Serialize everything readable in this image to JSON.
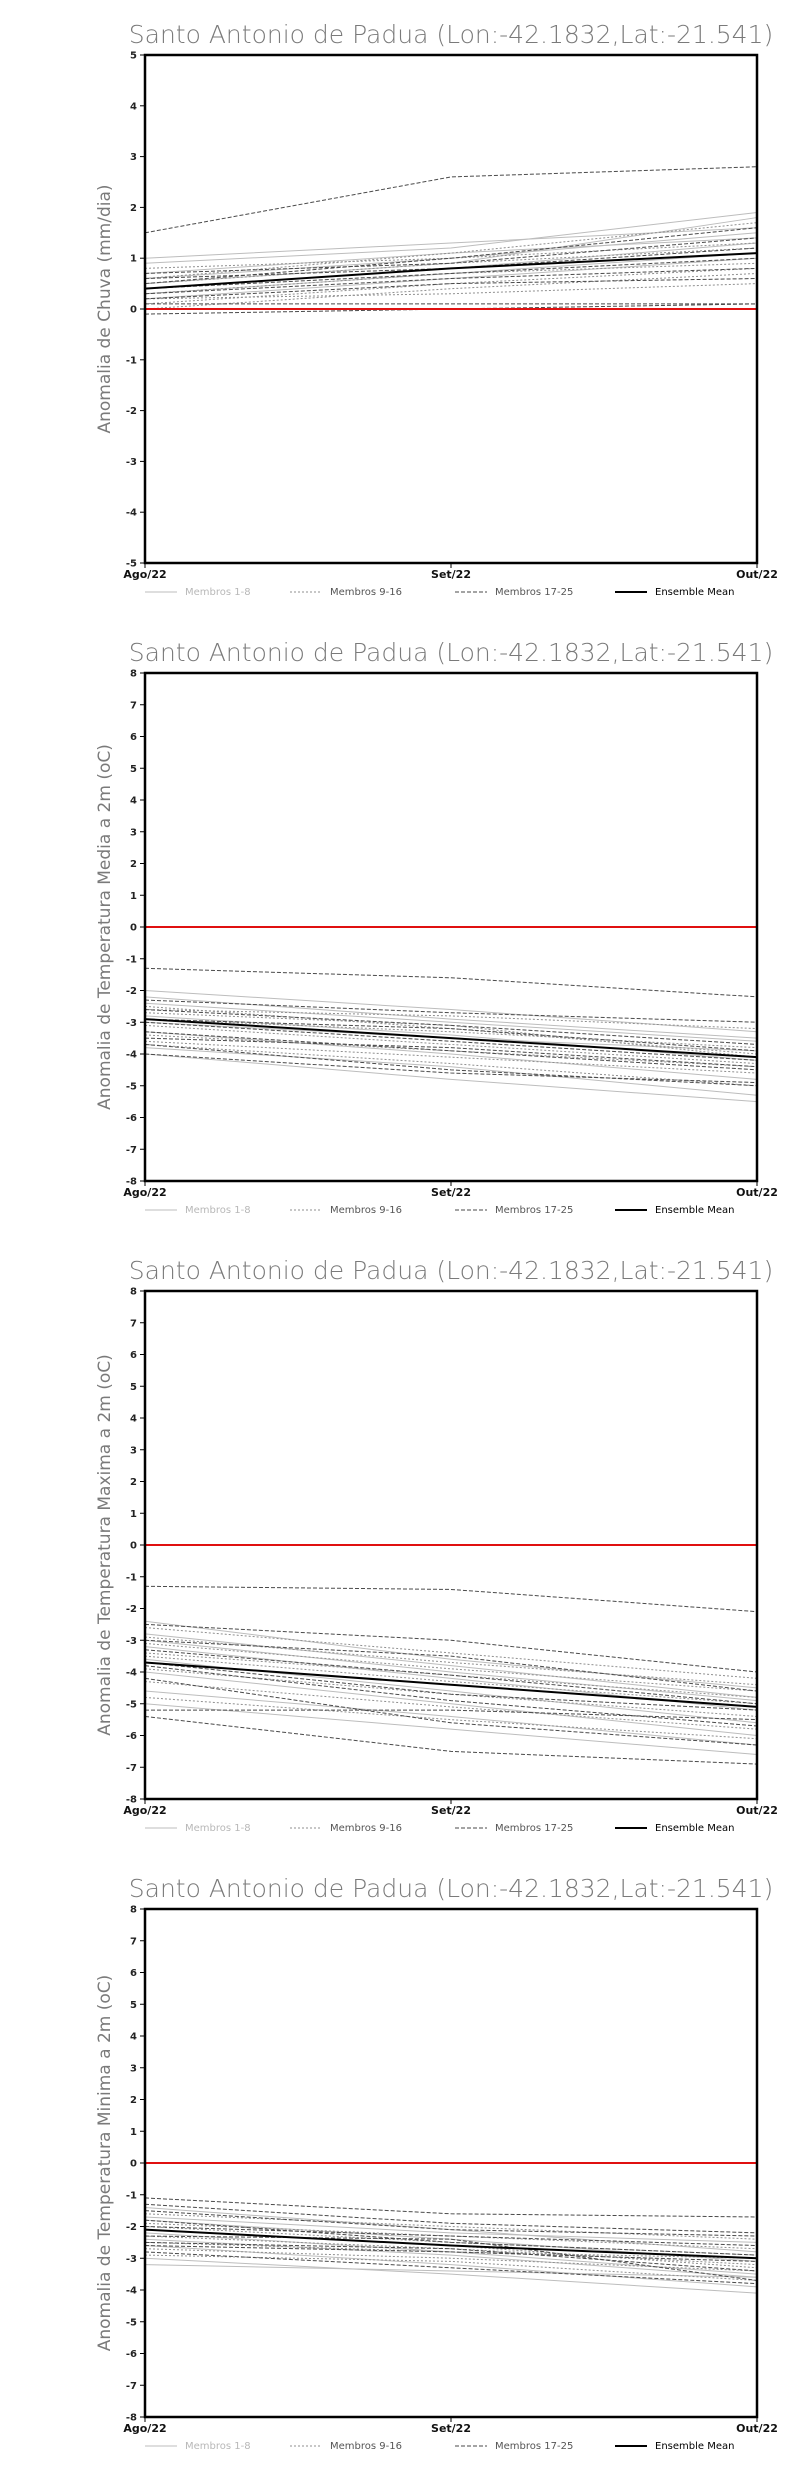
{
  "chart_data": [
    {
      "type": "line",
      "title": "Santo Antonio de Padua (Lon:-42.1832,Lat:-21.541)",
      "ylabel": "Anomalia de Chuva (mm/dia)",
      "xlabel": "",
      "categories": [
        "Ago/22",
        "Set/22",
        "Out/22"
      ],
      "ylim": [
        -5,
        5
      ],
      "yticks": [
        -5,
        -4,
        -3,
        -2,
        -1,
        0,
        1,
        2,
        3,
        4,
        5
      ],
      "zero_line_color": "#e01010",
      "grid": false,
      "legend_position": "bottom",
      "legend": [
        "Membros 1-8",
        "Membros 9-16",
        "Membros 17-25",
        "Ensemble Mean"
      ],
      "series": [
        {
          "group": 1,
          "values": [
            0.9,
            1.2,
            1.9
          ]
        },
        {
          "group": 1,
          "values": [
            0.6,
            1.0,
            1.5
          ]
        },
        {
          "group": 1,
          "values": [
            0.4,
            0.8,
            1.3
          ]
        },
        {
          "group": 1,
          "values": [
            0.2,
            0.6,
            1.0
          ]
        },
        {
          "group": 1,
          "values": [
            1.0,
            1.3,
            1.6
          ]
        },
        {
          "group": 1,
          "values": [
            0.3,
            0.7,
            1.1
          ]
        },
        {
          "group": 1,
          "values": [
            0.7,
            1.1,
            1.4
          ]
        },
        {
          "group": 1,
          "values": [
            0.5,
            0.9,
            1.8
          ]
        },
        {
          "group": 2,
          "values": [
            0.5,
            0.9,
            1.2
          ]
        },
        {
          "group": 2,
          "values": [
            0.3,
            0.7,
            0.9
          ]
        },
        {
          "group": 2,
          "values": [
            0.8,
            1.0,
            1.3
          ]
        },
        {
          "group": 2,
          "values": [
            0.1,
            0.5,
            0.8
          ]
        },
        {
          "group": 2,
          "values": [
            0.6,
            1.1,
            1.7
          ]
        },
        {
          "group": 2,
          "values": [
            0.2,
            0.3,
            0.5
          ]
        },
        {
          "group": 2,
          "values": [
            0.4,
            0.8,
            1.1
          ]
        },
        {
          "group": 2,
          "values": [
            0.0,
            0.4,
            0.7
          ]
        },
        {
          "group": 3,
          "values": [
            1.5,
            2.6,
            2.8
          ]
        },
        {
          "group": 3,
          "values": [
            0.7,
            0.9,
            1.4
          ]
        },
        {
          "group": 3,
          "values": [
            0.4,
            0.7,
            1.0
          ]
        },
        {
          "group": 3,
          "values": [
            0.1,
            0.1,
            0.1
          ]
        },
        {
          "group": 3,
          "values": [
            -0.1,
            0.0,
            0.1
          ]
        },
        {
          "group": 3,
          "values": [
            0.3,
            0.6,
            0.8
          ]
        },
        {
          "group": 3,
          "values": [
            0.6,
            0.8,
            1.2
          ]
        },
        {
          "group": 3,
          "values": [
            0.2,
            0.5,
            0.6
          ]
        },
        {
          "group": 3,
          "values": [
            0.5,
            1.0,
            1.6
          ]
        },
        {
          "group": 4,
          "name": "Ensemble Mean",
          "values": [
            0.4,
            0.8,
            1.1
          ]
        }
      ]
    },
    {
      "type": "line",
      "title": "Santo Antonio de Padua (Lon:-42.1832,Lat:-21.541)",
      "ylabel": "Anomalia de Temperatura Media a 2m (oC)",
      "xlabel": "",
      "categories": [
        "Ago/22",
        "Set/22",
        "Out/22"
      ],
      "ylim": [
        -8,
        8
      ],
      "yticks": [
        -8,
        -7,
        -6,
        -5,
        -4,
        -3,
        -2,
        -1,
        0,
        1,
        2,
        3,
        4,
        5,
        6,
        7,
        8
      ],
      "zero_line_color": "#e01010",
      "grid": false,
      "legend_position": "bottom",
      "legend": [
        "Membros 1-8",
        "Membros 9-16",
        "Membros 17-25",
        "Ensemble Mean"
      ],
      "series": [
        {
          "group": 1,
          "values": [
            -2.0,
            -2.6,
            -3.3
          ]
        },
        {
          "group": 1,
          "values": [
            -2.4,
            -3.0,
            -3.6
          ]
        },
        {
          "group": 1,
          "values": [
            -2.8,
            -3.4,
            -4.2
          ]
        },
        {
          "group": 1,
          "values": [
            -3.3,
            -4.0,
            -4.8
          ]
        },
        {
          "group": 1,
          "values": [
            -3.8,
            -4.4,
            -5.3
          ]
        },
        {
          "group": 1,
          "values": [
            -4.0,
            -4.8,
            -5.5
          ]
        },
        {
          "group": 1,
          "values": [
            -2.2,
            -2.9,
            -3.5
          ]
        },
        {
          "group": 1,
          "values": [
            -3.0,
            -3.5,
            -3.9
          ]
        },
        {
          "group": 2,
          "values": [
            -2.5,
            -3.2,
            -4.0
          ]
        },
        {
          "group": 2,
          "values": [
            -2.9,
            -3.3,
            -3.8
          ]
        },
        {
          "group": 2,
          "values": [
            -3.4,
            -3.9,
            -4.4
          ]
        },
        {
          "group": 2,
          "values": [
            -3.6,
            -4.1,
            -4.6
          ]
        },
        {
          "group": 2,
          "values": [
            -2.7,
            -3.1,
            -4.1
          ]
        },
        {
          "group": 2,
          "values": [
            -3.1,
            -3.7,
            -4.3
          ]
        },
        {
          "group": 2,
          "values": [
            -2.6,
            -2.8,
            -3.2
          ]
        },
        {
          "group": 2,
          "values": [
            -3.7,
            -4.3,
            -5.0
          ]
        },
        {
          "group": 3,
          "values": [
            -1.3,
            -1.6,
            -2.2
          ]
        },
        {
          "group": 3,
          "values": [
            -2.3,
            -2.7,
            -3.0
          ]
        },
        {
          "group": 3,
          "values": [
            -2.6,
            -3.1,
            -3.7
          ]
        },
        {
          "group": 3,
          "values": [
            -3.0,
            -3.6,
            -4.2
          ]
        },
        {
          "group": 3,
          "values": [
            -3.5,
            -3.8,
            -4.4
          ]
        },
        {
          "group": 3,
          "values": [
            -3.7,
            -4.5,
            -5.0
          ]
        },
        {
          "group": 3,
          "values": [
            -4.0,
            -4.6,
            -4.9
          ]
        },
        {
          "group": 3,
          "values": [
            -2.9,
            -3.2,
            -3.9
          ]
        },
        {
          "group": 3,
          "values": [
            -3.3,
            -3.9,
            -4.5
          ]
        },
        {
          "group": 4,
          "name": "Ensemble Mean",
          "values": [
            -2.9,
            -3.5,
            -4.1
          ]
        }
      ]
    },
    {
      "type": "line",
      "title": "Santo Antonio de Padua (Lon:-42.1832,Lat:-21.541)",
      "ylabel": "Anomalia de Temperatura Maxima a 2m (oC)",
      "xlabel": "",
      "categories": [
        "Ago/22",
        "Set/22",
        "Out/22"
      ],
      "ylim": [
        -8,
        8
      ],
      "yticks": [
        -8,
        -7,
        -6,
        -5,
        -4,
        -3,
        -2,
        -1,
        0,
        1,
        2,
        3,
        4,
        5,
        6,
        7,
        8
      ],
      "zero_line_color": "#e01010",
      "grid": false,
      "legend_position": "bottom",
      "legend": [
        "Membros 1-8",
        "Membros 9-16",
        "Membros 17-25",
        "Ensemble Mean"
      ],
      "series": [
        {
          "group": 1,
          "values": [
            -2.4,
            -3.6,
            -4.5
          ]
        },
        {
          "group": 1,
          "values": [
            -2.8,
            -3.8,
            -4.8
          ]
        },
        {
          "group": 1,
          "values": [
            -3.2,
            -4.2,
            -5.2
          ]
        },
        {
          "group": 1,
          "values": [
            -3.6,
            -4.6,
            -5.6
          ]
        },
        {
          "group": 1,
          "values": [
            -4.0,
            -5.0,
            -6.0
          ]
        },
        {
          "group": 1,
          "values": [
            -4.6,
            -5.4,
            -6.3
          ]
        },
        {
          "group": 1,
          "values": [
            -5.0,
            -5.8,
            -6.6
          ]
        },
        {
          "group": 1,
          "values": [
            -3.0,
            -4.0,
            -4.9
          ]
        },
        {
          "group": 2,
          "values": [
            -2.6,
            -3.4,
            -4.2
          ]
        },
        {
          "group": 2,
          "values": [
            -3.1,
            -3.9,
            -4.6
          ]
        },
        {
          "group": 2,
          "values": [
            -3.5,
            -4.3,
            -5.0
          ]
        },
        {
          "group": 2,
          "values": [
            -3.9,
            -4.7,
            -5.4
          ]
        },
        {
          "group": 2,
          "values": [
            -4.3,
            -5.1,
            -5.8
          ]
        },
        {
          "group": 2,
          "values": [
            -2.9,
            -3.7,
            -4.4
          ]
        },
        {
          "group": 2,
          "values": [
            -3.4,
            -4.1,
            -4.8
          ]
        },
        {
          "group": 2,
          "values": [
            -4.8,
            -5.5,
            -6.1
          ]
        },
        {
          "group": 3,
          "values": [
            -1.3,
            -1.4,
            -2.1
          ]
        },
        {
          "group": 3,
          "values": [
            -2.5,
            -3.0,
            -4.0
          ]
        },
        {
          "group": 3,
          "values": [
            -3.0,
            -3.5,
            -4.6
          ]
        },
        {
          "group": 3,
          "values": [
            -3.3,
            -4.1,
            -5.0
          ]
        },
        {
          "group": 3,
          "values": [
            -3.7,
            -4.7,
            -5.2
          ]
        },
        {
          "group": 3,
          "values": [
            -5.2,
            -5.2,
            -5.5
          ]
        },
        {
          "group": 3,
          "values": [
            -5.4,
            -6.5,
            -6.9
          ]
        },
        {
          "group": 3,
          "values": [
            -3.8,
            -4.9,
            -5.7
          ]
        },
        {
          "group": 3,
          "values": [
            -4.2,
            -5.6,
            -6.3
          ]
        },
        {
          "group": 4,
          "name": "Ensemble Mean",
          "values": [
            -3.7,
            -4.4,
            -5.1
          ]
        }
      ]
    },
    {
      "type": "line",
      "title": "Santo Antonio de Padua (Lon:-42.1832,Lat:-21.541)",
      "ylabel": "Anomalia de Temperatura Minima a 2m (oC)",
      "xlabel": "",
      "categories": [
        "Ago/22",
        "Set/22",
        "Out/22"
      ],
      "ylim": [
        -8,
        8
      ],
      "yticks": [
        -8,
        -7,
        -6,
        -5,
        -4,
        -3,
        -2,
        -1,
        0,
        1,
        2,
        3,
        4,
        5,
        6,
        7,
        8
      ],
      "zero_line_color": "#e01010",
      "grid": false,
      "legend_position": "bottom",
      "legend": [
        "Membros 1-8",
        "Membros 9-16",
        "Membros 17-25",
        "Ensemble Mean"
      ],
      "series": [
        {
          "group": 1,
          "values": [
            -1.4,
            -2.1,
            -2.8
          ]
        },
        {
          "group": 1,
          "values": [
            -1.8,
            -2.4,
            -3.1
          ]
        },
        {
          "group": 1,
          "values": [
            -2.2,
            -2.8,
            -3.5
          ]
        },
        {
          "group": 1,
          "values": [
            -2.6,
            -3.2,
            -3.9
          ]
        },
        {
          "group": 1,
          "values": [
            -3.0,
            -3.5,
            -4.1
          ]
        },
        {
          "group": 1,
          "values": [
            -3.2,
            -3.4,
            -3.6
          ]
        },
        {
          "group": 1,
          "values": [
            -1.7,
            -2.2,
            -2.5
          ]
        },
        {
          "group": 1,
          "values": [
            -2.4,
            -2.9,
            -3.6
          ]
        },
        {
          "group": 2,
          "values": [
            -1.6,
            -2.0,
            -2.4
          ]
        },
        {
          "group": 2,
          "values": [
            -2.0,
            -2.5,
            -2.9
          ]
        },
        {
          "group": 2,
          "values": [
            -2.3,
            -2.7,
            -3.2
          ]
        },
        {
          "group": 2,
          "values": [
            -2.7,
            -3.0,
            -3.4
          ]
        },
        {
          "group": 2,
          "values": [
            -1.9,
            -2.3,
            -2.7
          ]
        },
        {
          "group": 2,
          "values": [
            -2.5,
            -2.8,
            -3.0
          ]
        },
        {
          "group": 2,
          "values": [
            -2.9,
            -3.1,
            -3.7
          ]
        },
        {
          "group": 2,
          "values": [
            -2.1,
            -2.6,
            -3.3
          ]
        },
        {
          "group": 3,
          "values": [
            -1.1,
            -1.6,
            -1.7
          ]
        },
        {
          "group": 3,
          "values": [
            -1.5,
            -2.1,
            -2.3
          ]
        },
        {
          "group": 3,
          "values": [
            -2.3,
            -2.4,
            -3.7
          ]
        },
        {
          "group": 3,
          "values": [
            -2.0,
            -2.3,
            -2.6
          ]
        },
        {
          "group": 3,
          "values": [
            -2.6,
            -2.8,
            -3.1
          ]
        },
        {
          "group": 3,
          "values": [
            -2.8,
            -3.3,
            -3.8
          ]
        },
        {
          "group": 3,
          "values": [
            -1.8,
            -2.5,
            -2.9
          ]
        },
        {
          "group": 3,
          "values": [
            -2.5,
            -2.7,
            -3.4
          ]
        },
        {
          "group": 3,
          "values": [
            -1.3,
            -1.9,
            -2.2
          ]
        },
        {
          "group": 4,
          "name": "Ensemble Mean",
          "values": [
            -2.1,
            -2.6,
            -3.0
          ]
        }
      ]
    }
  ],
  "legend_styles": [
    {
      "label": "Membros 1-8",
      "color": "#bdbdbd",
      "dash": "none",
      "width": 1
    },
    {
      "label": "Membros 9-16",
      "color": "#8f8f8f",
      "dash": "2,2",
      "width": 1
    },
    {
      "label": "Membros 17-25",
      "color": "#4a4a4a",
      "dash": "4,2",
      "width": 1
    },
    {
      "label": "Ensemble Mean",
      "color": "#000000",
      "dash": "none",
      "width": 2
    }
  ]
}
